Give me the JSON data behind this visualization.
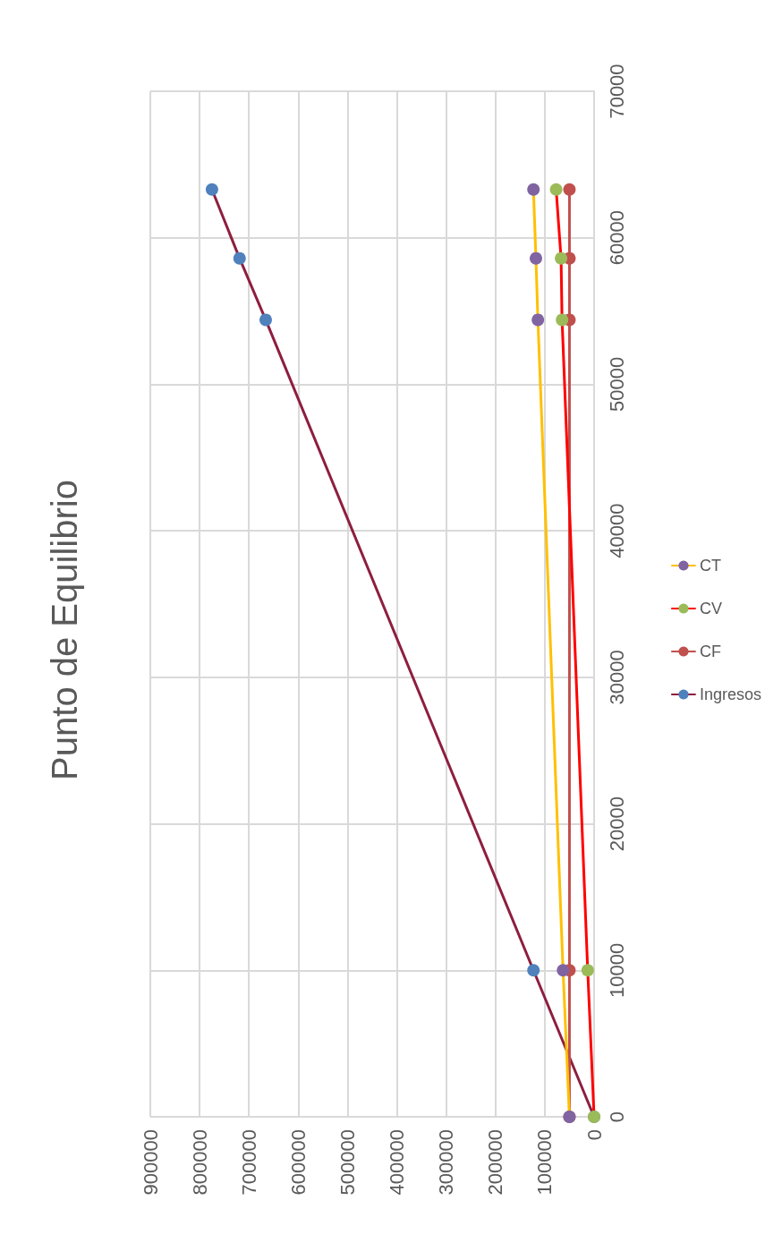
{
  "chart_data": {
    "type": "line",
    "title": "Punto de Equilibrio",
    "series": [
      {
        "name": "Ingresos",
        "color": "#8e1e3f",
        "colors": [
          "#4f81bd",
          "#4f81bd",
          "#4f81bd",
          "#4f81bd",
          "#4f81bd"
        ],
        "x": [
          0,
          123000,
          666000,
          719000,
          775000
        ],
        "values": [
          0,
          10000,
          54400,
          58600,
          63300
        ]
      },
      {
        "name": "CF",
        "color": "#c0504d",
        "colors": [
          "#c0504d",
          "#c0504d",
          "#c0504d",
          "#c0504d",
          "#c0504d"
        ],
        "x": [
          50000,
          50000,
          50000,
          50000,
          50000
        ],
        "values": [
          0,
          10000,
          54400,
          58600,
          63300
        ]
      },
      {
        "name": "CV",
        "color": "#ff0000",
        "colors": [
          "#9bbb59",
          "#9bbb59",
          "#9bbb59",
          "#9bbb59",
          "#9bbb59"
        ],
        "x": [
          0,
          13000,
          65000,
          67000,
          77000
        ],
        "values": [
          0,
          10000,
          54400,
          58600,
          63300
        ]
      },
      {
        "name": "CT",
        "color": "#ffc000",
        "colors": [
          "#8064a2",
          "#8064a2",
          "#8064a2",
          "#8064a2",
          "#8064a2"
        ],
        "x": [
          50000,
          63000,
          114000,
          118000,
          123000
        ],
        "values": [
          0,
          10000,
          54400,
          58600,
          63300
        ]
      }
    ],
    "xlim": [
      900000,
      0
    ],
    "xticks": [
      900000,
      800000,
      700000,
      600000,
      500000,
      400000,
      300000,
      200000,
      100000,
      0
    ],
    "ylim": [
      0,
      70000
    ],
    "yticks": [
      0,
      10000,
      20000,
      30000,
      40000,
      50000,
      60000,
      70000
    ],
    "grid": true,
    "legend": "right",
    "marker": "circle",
    "line_style": "solid"
  }
}
